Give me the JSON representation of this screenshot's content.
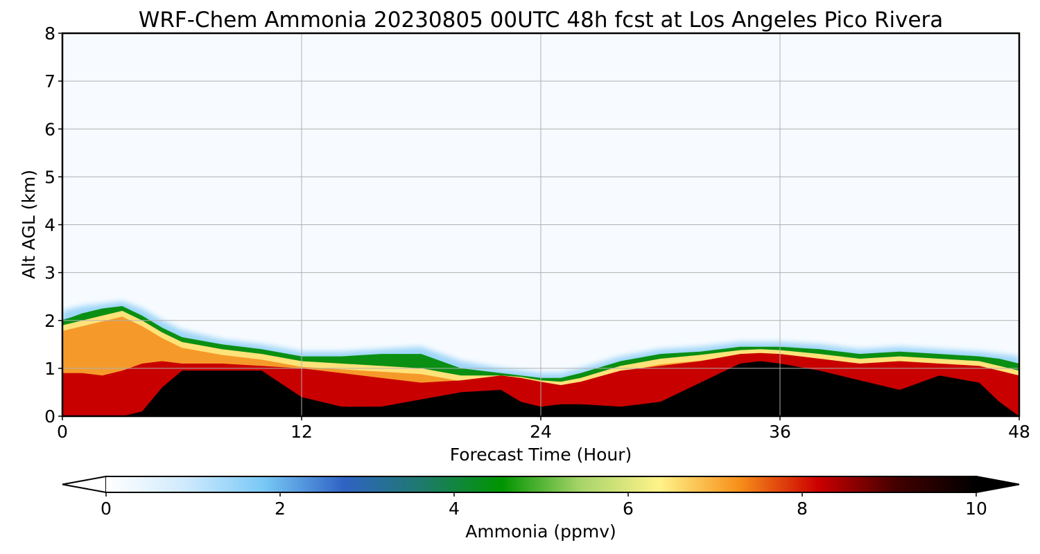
{
  "chart_data": {
    "type": "heatmap",
    "title": "WRF-Chem Ammonia  20230805 00UTC 48h fcst at Los Angeles Pico Rivera",
    "xlabel": "Forecast Time (Hour)",
    "ylabel": "Alt AGL (km)",
    "xlim": [
      0,
      48
    ],
    "ylim": [
      0,
      8
    ],
    "xticks": [
      "0",
      "12",
      "24",
      "36",
      "48"
    ],
    "yticks": [
      "0",
      "1",
      "2",
      "3",
      "4",
      "5",
      "6",
      "7",
      "8"
    ],
    "grid": true,
    "colorbar": {
      "label": "Ammonia  (ppmv)",
      "range": [
        0,
        10
      ],
      "ticks": [
        "0",
        "2",
        "4",
        "6",
        "8",
        "10"
      ],
      "extend": "both",
      "orientation": "horizontal",
      "colors": [
        "#ffffff",
        "#cfeafd",
        "#78c8f6",
        "#2f63c4",
        "#1e7a6b",
        "#009500",
        "#a7d46a",
        "#fff38a",
        "#f7901a",
        "#cc0000",
        "#420000",
        "#000000"
      ]
    },
    "hours": [
      0,
      1,
      2,
      3,
      4,
      5,
      6,
      8,
      10,
      12,
      14,
      16,
      18,
      20,
      22,
      23,
      24,
      25,
      26,
      28,
      30,
      32,
      34,
      35,
      36,
      38,
      40,
      42,
      44,
      46,
      47,
      48
    ],
    "profiles": {
      "mixing_top_km": [
        2.2,
        2.3,
        2.35,
        2.4,
        2.25,
        2.0,
        1.8,
        1.6,
        1.5,
        1.35,
        1.35,
        1.4,
        1.45,
        1.15,
        1.0,
        0.95,
        0.9,
        0.9,
        1.0,
        1.25,
        1.4,
        1.45,
        1.55,
        1.55,
        1.55,
        1.5,
        1.4,
        1.45,
        1.4,
        1.35,
        1.3,
        1.25
      ],
      "green_layer_km": [
        2.0,
        2.15,
        2.25,
        2.3,
        2.1,
        1.85,
        1.65,
        1.5,
        1.4,
        1.25,
        1.25,
        1.3,
        1.3,
        1.0,
        0.9,
        0.85,
        0.8,
        0.8,
        0.9,
        1.15,
        1.3,
        1.35,
        1.45,
        1.45,
        1.45,
        1.4,
        1.3,
        1.35,
        1.3,
        1.25,
        1.2,
        1.1
      ],
      "yellow_layer_km": [
        1.9,
        2.0,
        2.1,
        2.2,
        2.0,
        1.75,
        1.55,
        1.4,
        1.3,
        1.15,
        1.1,
        1.05,
        1.0,
        0.85,
        0.85,
        0.82,
        0.75,
        0.72,
        0.8,
        1.05,
        1.2,
        1.28,
        1.38,
        1.4,
        1.38,
        1.3,
        1.2,
        1.25,
        1.2,
        1.15,
        1.05,
        0.95
      ],
      "red_top_km": [
        0.9,
        0.9,
        0.85,
        0.95,
        1.1,
        1.15,
        1.1,
        1.1,
        1.05,
        1.0,
        0.9,
        0.8,
        0.7,
        0.75,
        0.85,
        0.8,
        0.72,
        0.65,
        0.72,
        0.95,
        1.05,
        1.15,
        1.3,
        1.32,
        1.3,
        1.2,
        1.1,
        1.15,
        1.1,
        1.05,
        0.95,
        0.85
      ],
      "black_top_km": [
        0.0,
        0.0,
        0.0,
        0.0,
        0.1,
        0.6,
        0.95,
        0.95,
        0.95,
        0.4,
        0.2,
        0.2,
        0.35,
        0.5,
        0.55,
        0.3,
        0.2,
        0.25,
        0.25,
        0.2,
        0.3,
        0.7,
        1.1,
        1.15,
        1.1,
        0.95,
        0.75,
        0.55,
        0.85,
        0.7,
        0.3,
        0.0
      ]
    }
  }
}
